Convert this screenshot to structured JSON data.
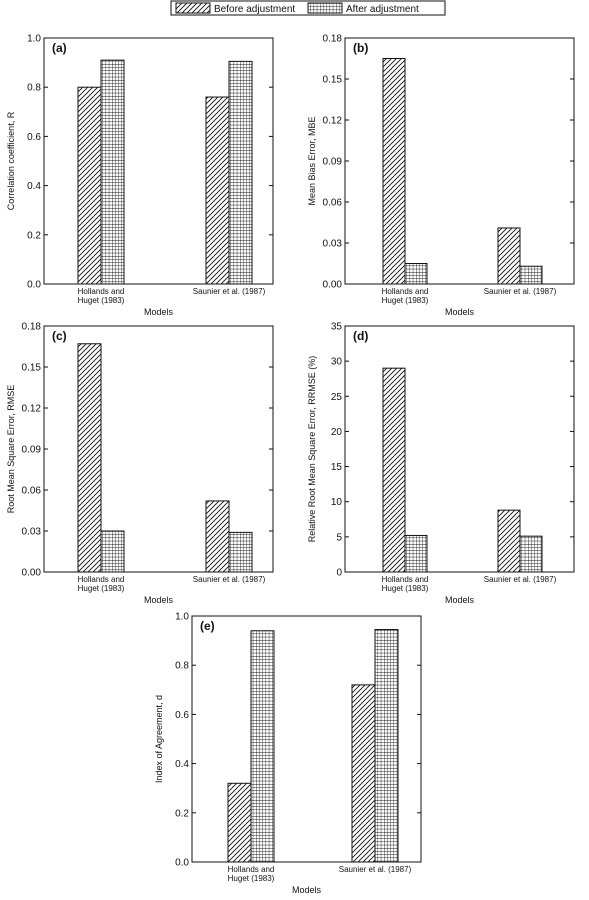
{
  "legend": {
    "entries": [
      {
        "name": "Before adjustment",
        "pattern": "diagonal-hatch"
      },
      {
        "name": "After adjustment",
        "pattern": "grid-hatch"
      }
    ],
    "placement": "top-center"
  },
  "chart_data": [
    {
      "type": "bar",
      "panel_label": "(a)",
      "categories": [
        [
          "Hollands and",
          "Huget (1983)"
        ],
        [
          "Saunier et al. (1987)"
        ]
      ],
      "series": [
        {
          "name": "Before adjustment",
          "values": [
            0.8,
            0.76
          ]
        },
        {
          "name": "After adjustment",
          "values": [
            0.91,
            0.905
          ]
        }
      ],
      "xlabel": "Models",
      "ylabel": "Correlation coefficient, R",
      "ylim": [
        0,
        1.0
      ],
      "yticks": [
        "0.0",
        "0.2",
        "0.4",
        "0.6",
        "0.8",
        "1.0"
      ]
    },
    {
      "type": "bar",
      "panel_label": "(b)",
      "categories": [
        [
          "Hollands and",
          "Huget (1983)"
        ],
        [
          "Saunier et al. (1987)"
        ]
      ],
      "series": [
        {
          "name": "Before adjustment",
          "values": [
            0.165,
            0.041
          ]
        },
        {
          "name": "After adjustment",
          "values": [
            0.015,
            0.013
          ]
        }
      ],
      "xlabel": "Models",
      "ylabel": "Mean Bias Error, MBE",
      "ylim": [
        0,
        0.18
      ],
      "yticks": [
        "0.00",
        "0.03",
        "0.06",
        "0.09",
        "0.12",
        "0.15",
        "0.18"
      ]
    },
    {
      "type": "bar",
      "panel_label": "(c)",
      "categories": [
        [
          "Hollands and",
          "Huget (1983)"
        ],
        [
          "Saunier et al. (1987)"
        ]
      ],
      "series": [
        {
          "name": "Before adjustment",
          "values": [
            0.167,
            0.052
          ]
        },
        {
          "name": "After adjustment",
          "values": [
            0.03,
            0.029
          ]
        }
      ],
      "xlabel": "Models",
      "ylabel": "Root Mean Square Error, RMSE",
      "ylim": [
        0,
        0.18
      ],
      "yticks": [
        "0.00",
        "0.03",
        "0.06",
        "0.09",
        "0.12",
        "0.15",
        "0.18"
      ]
    },
    {
      "type": "bar",
      "panel_label": "(d)",
      "categories": [
        [
          "Hollands and",
          "Huget (1983)"
        ],
        [
          "Saunier et al. (1987)"
        ]
      ],
      "series": [
        {
          "name": "Before adjustment",
          "values": [
            29,
            8.8
          ]
        },
        {
          "name": "After adjustment",
          "values": [
            5.2,
            5.1
          ]
        }
      ],
      "xlabel": "Models",
      "ylabel": "Relative Root Mean Square Error, RRMSE (%)",
      "ylim": [
        0,
        35
      ],
      "yticks": [
        "0",
        "5",
        "10",
        "15",
        "20",
        "25",
        "30",
        "35"
      ]
    },
    {
      "type": "bar",
      "panel_label": "(e)",
      "categories": [
        [
          "Hollands and",
          "Huget (1983)"
        ],
        [
          "Saunier et al. (1987)"
        ]
      ],
      "series": [
        {
          "name": "Before adjustment",
          "values": [
            0.32,
            0.72
          ]
        },
        {
          "name": "After adjustment",
          "values": [
            0.94,
            0.945
          ]
        }
      ],
      "xlabel": "Models",
      "ylabel": "Index of Agreement, d",
      "ylim": [
        0,
        1.0
      ],
      "yticks": [
        "0.0",
        "0.2",
        "0.4",
        "0.6",
        "0.8",
        "1.0"
      ]
    }
  ]
}
